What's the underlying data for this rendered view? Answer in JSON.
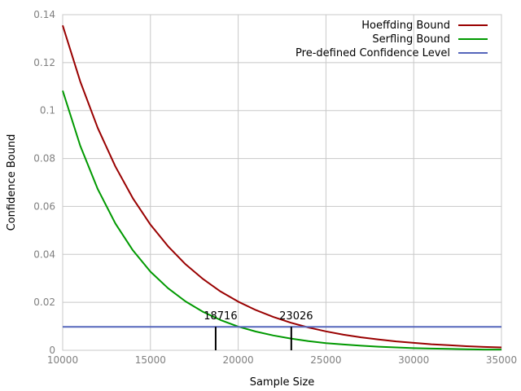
{
  "chart_data": {
    "type": "line",
    "title": "",
    "xlabel": "Sample Size",
    "ylabel": "Confidence Bound",
    "xlim": [
      10000,
      35000
    ],
    "ylim": [
      0,
      0.14
    ],
    "x_ticks": [
      10000,
      15000,
      20000,
      25000,
      30000,
      35000
    ],
    "y_ticks": [
      0,
      0.02,
      0.04,
      0.06,
      0.08,
      0.1,
      0.12,
      0.14
    ],
    "x_tick_labels": [
      "10000",
      "15000",
      "20000",
      "25000",
      "30000",
      "35000"
    ],
    "y_tick_labels": [
      "0",
      "0.02",
      "0.04",
      "0.06",
      "0.08",
      "0.1",
      "0.12",
      "0.14"
    ],
    "grid": true,
    "legend_position": "top-right",
    "series": [
      {
        "name": "Hoeffding Bound",
        "color": "#990000",
        "x": [
          10000,
          11000,
          12000,
          13000,
          14000,
          15000,
          16000,
          17000,
          18000,
          19000,
          20000,
          21000,
          22000,
          23000,
          24000,
          25000,
          26000,
          27000,
          28000,
          29000,
          30000,
          31000,
          32000,
          33000,
          34000,
          35000
        ],
        "y": [
          0.1355,
          0.1121,
          0.0927,
          0.0767,
          0.0634,
          0.0524,
          0.0434,
          0.0359,
          0.0297,
          0.0245,
          0.0203,
          0.0168,
          0.0139,
          0.0115,
          0.0095,
          0.0079,
          0.0065,
          0.0054,
          0.0045,
          0.0037,
          0.0031,
          0.0025,
          0.0021,
          0.0017,
          0.0014,
          0.0012
        ]
      },
      {
        "name": "Serfling Bound",
        "color": "#009900",
        "x": [
          10000,
          11000,
          12000,
          13000,
          14000,
          15000,
          16000,
          17000,
          18000,
          19000,
          20000,
          21000,
          22000,
          23000,
          24000,
          25000,
          26000,
          27000,
          28000,
          29000,
          30000,
          31000,
          32000,
          33000,
          34000,
          35000
        ],
        "y": [
          0.1083,
          0.0853,
          0.0672,
          0.0529,
          0.0417,
          0.0328,
          0.0259,
          0.0204,
          0.016,
          0.0126,
          0.0099,
          0.0078,
          0.0062,
          0.0049,
          0.0038,
          0.003,
          0.0024,
          0.0019,
          0.0015,
          0.0012,
          0.0009,
          0.0007,
          0.0006,
          0.0004,
          0.0003,
          0.0003
        ]
      },
      {
        "name": "Pre-defined Confidence Level",
        "color": "#5566bb",
        "x": [
          10000,
          35000
        ],
        "y": [
          0.0098,
          0.0098
        ]
      }
    ],
    "annotations": [
      {
        "text": "18716",
        "x": 18716,
        "y": 0.0098
      },
      {
        "text": "23026",
        "x": 23026,
        "y": 0.0098
      }
    ]
  }
}
